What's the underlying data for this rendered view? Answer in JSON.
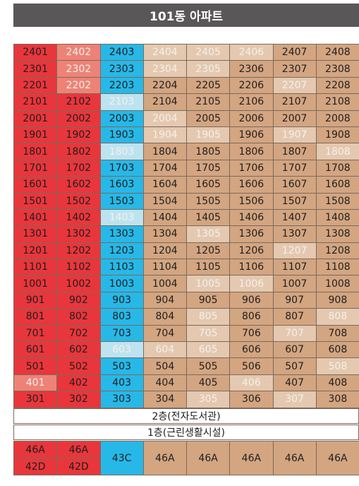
{
  "title": "101동 아파트",
  "columns": [
    {
      "color": "red"
    },
    {
      "color": "red"
    },
    {
      "color": "blue"
    },
    {
      "color": "brown"
    },
    {
      "color": "brown"
    },
    {
      "color": "brown"
    },
    {
      "color": "brown"
    },
    {
      "color": "brown"
    }
  ],
  "colors": {
    "red": "#e8363c",
    "blue": "#27b8e8",
    "brown": "#d3a581",
    "title_bg": "#595757"
  },
  "unit_rows": [
    {
      "floor": 24,
      "units": [
        "2401",
        "2402",
        "2403",
        "2404",
        "2405",
        "2406",
        "2407",
        "2408"
      ],
      "faded": [
        1,
        3,
        4,
        5
      ]
    },
    {
      "floor": 23,
      "units": [
        "2301",
        "2302",
        "2303",
        "2304",
        "2305",
        "2306",
        "2307",
        "2308"
      ],
      "faded": [
        1,
        3,
        4
      ]
    },
    {
      "floor": 22,
      "units": [
        "2201",
        "2202",
        "2203",
        "2204",
        "2205",
        "2206",
        "2207",
        "2208"
      ],
      "faded": [
        1,
        6
      ]
    },
    {
      "floor": 21,
      "units": [
        "2101",
        "2102",
        "2103",
        "2104",
        "2105",
        "2106",
        "2107",
        "2108"
      ],
      "faded": [
        2
      ]
    },
    {
      "floor": 20,
      "units": [
        "2001",
        "2002",
        "2003",
        "2004",
        "2005",
        "2006",
        "2007",
        "2008"
      ],
      "faded": [
        3
      ]
    },
    {
      "floor": 19,
      "units": [
        "1901",
        "1902",
        "1903",
        "1904",
        "1905",
        "1906",
        "1907",
        "1908"
      ],
      "faded": [
        3,
        4,
        6
      ]
    },
    {
      "floor": 18,
      "units": [
        "1801",
        "1802",
        "1803",
        "1804",
        "1805",
        "1806",
        "1807",
        "1808"
      ],
      "faded": [
        2,
        7
      ]
    },
    {
      "floor": 17,
      "units": [
        "1701",
        "1702",
        "1703",
        "1704",
        "1705",
        "1706",
        "1707",
        "1708"
      ],
      "faded": []
    },
    {
      "floor": 16,
      "units": [
        "1601",
        "1602",
        "1603",
        "1604",
        "1605",
        "1606",
        "1607",
        "1608"
      ],
      "faded": []
    },
    {
      "floor": 15,
      "units": [
        "1501",
        "1502",
        "1503",
        "1504",
        "1505",
        "1506",
        "1507",
        "1508"
      ],
      "faded": []
    },
    {
      "floor": 14,
      "units": [
        "1401",
        "1402",
        "1403",
        "1404",
        "1405",
        "1406",
        "1407",
        "1408"
      ],
      "faded": [
        2
      ]
    },
    {
      "floor": 13,
      "units": [
        "1301",
        "1302",
        "1303",
        "1304",
        "1305",
        "1306",
        "1307",
        "1308"
      ],
      "faded": [
        4
      ]
    },
    {
      "floor": 12,
      "units": [
        "1201",
        "1202",
        "1203",
        "1204",
        "1205",
        "1206",
        "1207",
        "1208"
      ],
      "faded": [
        6
      ]
    },
    {
      "floor": 11,
      "units": [
        "1101",
        "1102",
        "1103",
        "1104",
        "1105",
        "1106",
        "1107",
        "1108"
      ],
      "faded": []
    },
    {
      "floor": 10,
      "units": [
        "1001",
        "1002",
        "1003",
        "1004",
        "1005",
        "1006",
        "1007",
        "1008"
      ],
      "faded": [
        4,
        5
      ]
    },
    {
      "floor": 9,
      "units": [
        "901",
        "902",
        "903",
        "904",
        "905",
        "906",
        "907",
        "908"
      ],
      "faded": []
    },
    {
      "floor": 8,
      "units": [
        "801",
        "802",
        "803",
        "804",
        "805",
        "806",
        "807",
        "808"
      ],
      "faded": [
        4,
        7
      ]
    },
    {
      "floor": 7,
      "units": [
        "701",
        "702",
        "703",
        "704",
        "705",
        "706",
        "707",
        "708"
      ],
      "faded": [
        4,
        6
      ]
    },
    {
      "floor": 6,
      "units": [
        "601",
        "602",
        "603",
        "604",
        "605",
        "606",
        "607",
        "608"
      ],
      "faded": [
        2,
        3,
        4
      ]
    },
    {
      "floor": 5,
      "units": [
        "501",
        "502",
        "503",
        "504",
        "505",
        "506",
        "507",
        "508"
      ],
      "faded": [
        7
      ]
    },
    {
      "floor": 4,
      "units": [
        "401",
        "402",
        "403",
        "404",
        "405",
        "406",
        "407",
        "408"
      ],
      "faded": [
        0,
        5
      ]
    },
    {
      "floor": 3,
      "units": [
        "301",
        "302",
        "303",
        "304",
        "305",
        "306",
        "307",
        "308"
      ],
      "faded": [
        4,
        6
      ]
    }
  ],
  "floor2_label": "2층(전자도서관)",
  "floor1_label": "1층(근린생활시설)",
  "unit_types": {
    "col1": [
      "46A",
      "42D"
    ],
    "col2": [
      "46A",
      "42D"
    ],
    "col3": "43C",
    "col4": "46A",
    "col5": "46A",
    "col6": "46A",
    "col7": "46A",
    "col8": "46A"
  }
}
